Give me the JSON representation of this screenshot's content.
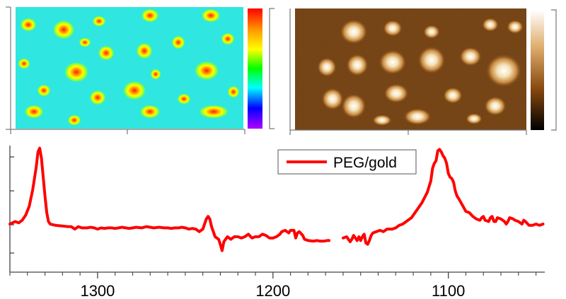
{
  "colors": {
    "spectrum_line": "#ff0000",
    "axis": "#444444",
    "left_map_background": "#2fe6e0",
    "right_map_background": "#6e3a10"
  },
  "maps": [
    {
      "name": "left-map",
      "colorbar": "rainbow"
    },
    {
      "name": "right-map",
      "colorbar": "brown-white"
    }
  ],
  "chart_data": {
    "type": "line",
    "title": "",
    "xlabel": "",
    "ylabel": "",
    "xlim": [
      1350,
      1045
    ],
    "ylim": [
      0,
      1
    ],
    "x_ticks": [
      1300,
      1200,
      1100
    ],
    "x_tick_labels": [
      "1300",
      "1200",
      "1100"
    ],
    "legend": {
      "position": "top-right",
      "entries": [
        "PEG/gold"
      ]
    },
    "series": [
      {
        "name": "PEG/gold",
        "segments": [
          [
            [
              1350,
              0.38
            ],
            [
              1347,
              0.4
            ],
            [
              1345,
              0.39
            ],
            [
              1343,
              0.41
            ],
            [
              1341,
              0.45
            ],
            [
              1339,
              0.52
            ],
            [
              1337,
              0.65
            ],
            [
              1335,
              0.83
            ],
            [
              1334,
              0.95
            ],
            [
              1333,
              0.98
            ],
            [
              1332,
              0.9
            ],
            [
              1331,
              0.75
            ],
            [
              1330,
              0.6
            ],
            [
              1329,
              0.47
            ],
            [
              1328,
              0.4
            ],
            [
              1327,
              0.38
            ],
            [
              1324,
              0.37
            ],
            [
              1320,
              0.365
            ],
            [
              1317,
              0.36
            ],
            [
              1315,
              0.36
            ],
            [
              1313,
              0.34
            ],
            [
              1311,
              0.36
            ],
            [
              1309,
              0.35
            ],
            [
              1306,
              0.35
            ],
            [
              1304,
              0.355
            ],
            [
              1302,
              0.35
            ],
            [
              1300,
              0.34
            ],
            [
              1298,
              0.35
            ],
            [
              1296,
              0.345
            ],
            [
              1294,
              0.35
            ],
            [
              1292,
              0.35
            ],
            [
              1290,
              0.345
            ],
            [
              1288,
              0.35
            ],
            [
              1286,
              0.355
            ],
            [
              1284,
              0.35
            ],
            [
              1282,
              0.345
            ],
            [
              1280,
              0.35
            ],
            [
              1278,
              0.355
            ],
            [
              1275,
              0.35
            ],
            [
              1272,
              0.36
            ],
            [
              1270,
              0.355
            ],
            [
              1268,
              0.35
            ],
            [
              1265,
              0.355
            ],
            [
              1262,
              0.35
            ],
            [
              1260,
              0.35
            ],
            [
              1258,
              0.345
            ],
            [
              1256,
              0.35
            ],
            [
              1254,
              0.35
            ],
            [
              1252,
              0.355
            ],
            [
              1250,
              0.35
            ],
            [
              1248,
              0.34
            ],
            [
              1246,
              0.345
            ],
            [
              1244,
              0.34
            ],
            [
              1242,
              0.32
            ],
            [
              1240,
              0.34
            ],
            [
              1239,
              0.38
            ],
            [
              1238,
              0.42
            ],
            [
              1237,
              0.44
            ],
            [
              1236,
              0.42
            ],
            [
              1235,
              0.36
            ],
            [
              1234,
              0.32
            ],
            [
              1233,
              0.28
            ],
            [
              1232,
              0.27
            ],
            [
              1231,
              0.26
            ],
            [
              1230,
              0.22
            ],
            [
              1229,
              0.17
            ],
            [
              1228,
              0.24
            ],
            [
              1226,
              0.28
            ],
            [
              1224,
              0.26
            ],
            [
              1222,
              0.28
            ],
            [
              1220,
              0.28
            ],
            [
              1218,
              0.27
            ],
            [
              1216,
              0.28
            ],
            [
              1214,
              0.3
            ],
            [
              1212,
              0.27
            ],
            [
              1210,
              0.28
            ],
            [
              1208,
              0.28
            ],
            [
              1206,
              0.3
            ],
            [
              1204,
              0.29
            ],
            [
              1202,
              0.27
            ],
            [
              1200,
              0.27
            ],
            [
              1198,
              0.28
            ],
            [
              1196,
              0.3
            ],
            [
              1195,
              0.32
            ],
            [
              1193,
              0.33
            ],
            [
              1191,
              0.31
            ],
            [
              1190,
              0.33
            ],
            [
              1188,
              0.33
            ],
            [
              1187,
              0.27
            ],
            [
              1186,
              0.31
            ],
            [
              1185,
              0.32
            ],
            [
              1183,
              0.29
            ],
            [
              1182,
              0.26
            ],
            [
              1180,
              0.25
            ],
            [
              1177,
              0.245
            ],
            [
              1175,
              0.25
            ],
            [
              1173,
              0.245
            ],
            [
              1171,
              0.245
            ],
            [
              1169,
              0.25
            ],
            [
              1168,
              0.25
            ]
          ],
          [
            [
              1160,
              0.27
            ],
            [
              1158,
              0.28
            ],
            [
              1157,
              0.26
            ],
            [
              1156,
              0.24
            ],
            [
              1155,
              0.26
            ],
            [
              1154,
              0.29
            ],
            [
              1153,
              0.27
            ],
            [
              1152,
              0.25
            ],
            [
              1151,
              0.28
            ],
            [
              1150,
              0.25
            ],
            [
              1149,
              0.28
            ],
            [
              1148,
              0.3
            ],
            [
              1147,
              0.23
            ],
            [
              1146,
              0.22
            ],
            [
              1145,
              0.25
            ],
            [
              1144,
              0.29
            ],
            [
              1143,
              0.31
            ],
            [
              1141,
              0.32
            ],
            [
              1139,
              0.33
            ],
            [
              1137,
              0.32
            ],
            [
              1135,
              0.34
            ],
            [
              1132,
              0.34
            ],
            [
              1130,
              0.35
            ],
            [
              1128,
              0.37
            ],
            [
              1126,
              0.38
            ],
            [
              1124,
              0.4
            ],
            [
              1121,
              0.43
            ],
            [
              1118,
              0.49
            ],
            [
              1115,
              0.55
            ],
            [
              1112,
              0.63
            ],
            [
              1110,
              0.72
            ],
            [
              1109,
              0.82
            ],
            [
              1108,
              0.86
            ],
            [
              1107,
              0.88
            ],
            [
              1106,
              0.96
            ],
            [
              1105,
              0.97
            ],
            [
              1104,
              0.95
            ],
            [
              1103,
              0.92
            ],
            [
              1102,
              0.9
            ],
            [
              1101,
              0.86
            ],
            [
              1100,
              0.78
            ],
            [
              1099,
              0.75
            ],
            [
              1098,
              0.74
            ],
            [
              1097,
              0.71
            ],
            [
              1096,
              0.64
            ],
            [
              1095,
              0.6
            ],
            [
              1094,
              0.58
            ],
            [
              1092,
              0.53
            ],
            [
              1090,
              0.48
            ],
            [
              1088,
              0.47
            ],
            [
              1086,
              0.44
            ],
            [
              1084,
              0.42
            ],
            [
              1082,
              0.41
            ],
            [
              1081,
              0.43
            ],
            [
              1080,
              0.44
            ],
            [
              1079,
              0.41
            ],
            [
              1077,
              0.4
            ],
            [
              1076,
              0.43
            ],
            [
              1075,
              0.44
            ],
            [
              1074,
              0.4
            ],
            [
              1073,
              0.4
            ],
            [
              1072,
              0.43
            ],
            [
              1070,
              0.42
            ],
            [
              1068,
              0.4
            ],
            [
              1067,
              0.38
            ],
            [
              1066,
              0.4
            ],
            [
              1065,
              0.43
            ],
            [
              1063,
              0.42
            ],
            [
              1062,
              0.41
            ],
            [
              1060,
              0.4
            ],
            [
              1058,
              0.38
            ],
            [
              1057,
              0.41
            ],
            [
              1056,
              0.4
            ],
            [
              1054,
              0.37
            ],
            [
              1052,
              0.37
            ],
            [
              1050,
              0.38
            ],
            [
              1048,
              0.37
            ],
            [
              1046,
              0.38
            ]
          ]
        ]
      }
    ]
  }
}
